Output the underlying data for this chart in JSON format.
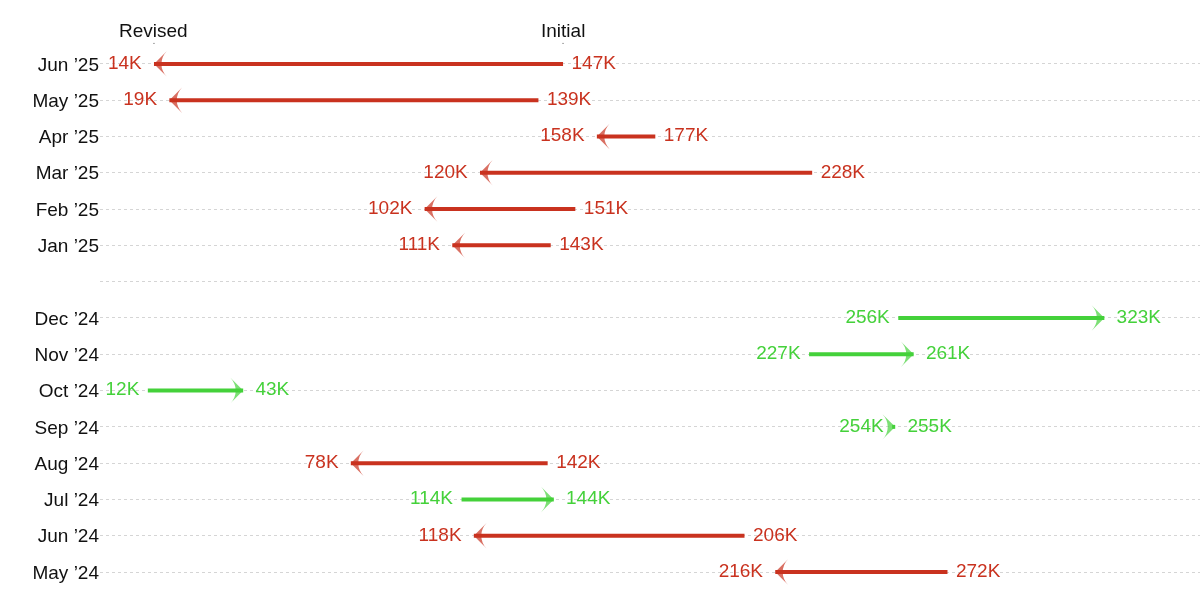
{
  "chart_data": {
    "type": "other",
    "categories": [
      "Jun ’25",
      "May ’25",
      "Apr ’25",
      "Mar ’25",
      "Feb ’25",
      "Jan ’25",
      null,
      "Dec ’24",
      "Nov ’24",
      "Oct ’24",
      "Sep ’24",
      "Aug ’24",
      "Jul ’24",
      "Jun ’24",
      "May ’24"
    ],
    "series": [
      {
        "name": "Initial",
        "values": [
          147,
          139,
          177,
          228,
          151,
          143,
          null,
          256,
          227,
          12,
          254,
          142,
          114,
          206,
          272
        ],
        "value_labels": [
          "147K",
          "139K",
          "177K",
          "228K",
          "151K",
          "143K",
          null,
          "256K",
          "227K",
          "12K",
          "254K",
          "142K",
          "114K",
          "206K",
          "272K"
        ],
        "colors": [
          "#c9321f",
          "#c9321f",
          "#c9321f",
          "#c9321f",
          "#c9321f",
          "#c9321f",
          null,
          "#44d13a",
          "#44d13a",
          "#44d13a",
          "#44d13a",
          "#c9321f",
          "#44d13a",
          "#c9321f",
          "#c9321f"
        ]
      },
      {
        "name": "Revised",
        "values": [
          14,
          19,
          158,
          120,
          102,
          111,
          null,
          323,
          261,
          43,
          255,
          78,
          144,
          118,
          216
        ],
        "value_labels": [
          "14K",
          "19K",
          "158K",
          "120K",
          "102K",
          "111K",
          null,
          "323K",
          "261K",
          "43K",
          "255K",
          "78K",
          "144K",
          "118K",
          "216K"
        ],
        "colors": [
          "#c9321f",
          "#c9321f",
          "#c9321f",
          "#c9321f",
          "#c9321f",
          "#c9321f",
          null,
          "#44d13a",
          "#44d13a",
          "#44d13a",
          "#44d13a",
          "#c9321f",
          "#44d13a",
          "#c9321f",
          "#c9321f"
        ]
      }
    ]
  }
}
